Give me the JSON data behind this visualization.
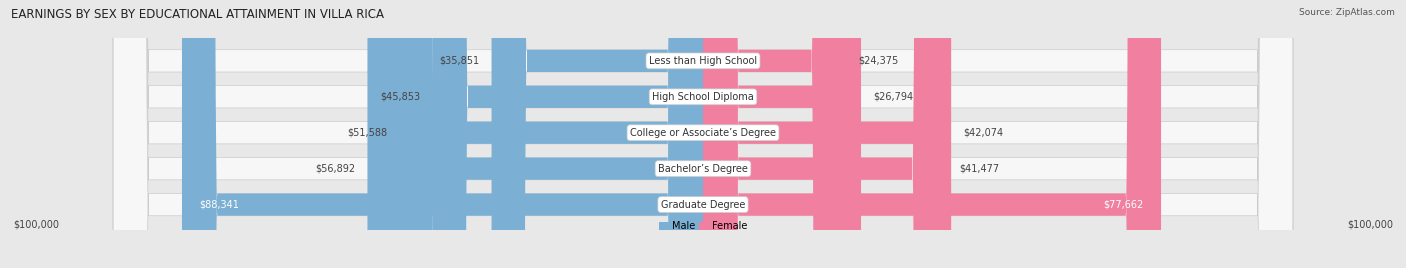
{
  "title": "EARNINGS BY SEX BY EDUCATIONAL ATTAINMENT IN VILLA RICA",
  "source": "Source: ZipAtlas.com",
  "categories": [
    "Less than High School",
    "High School Diploma",
    "College or Associate’s Degree",
    "Bachelor’s Degree",
    "Graduate Degree"
  ],
  "male_values": [
    35851,
    45853,
    51588,
    56892,
    88341
  ],
  "female_values": [
    24375,
    26794,
    42074,
    41477,
    77662
  ],
  "male_labels": [
    "$35,851",
    "$45,853",
    "$51,588",
    "$56,892",
    "$88,341"
  ],
  "female_labels": [
    "$24,375",
    "$26,794",
    "$42,074",
    "$41,477",
    "$77,662"
  ],
  "male_color": "#7bafd4",
  "female_color": "#f07fa0",
  "max_value": 100000,
  "x_label_left": "$100,000",
  "x_label_right": "$100,000",
  "legend_male": "Male",
  "legend_female": "Female",
  "bg_color": "#e8e8e8",
  "bar_bg_color": "#f7f7f7",
  "bar_border_color": "#cccccc",
  "title_fontsize": 8.5,
  "label_fontsize": 7,
  "category_fontsize": 7
}
